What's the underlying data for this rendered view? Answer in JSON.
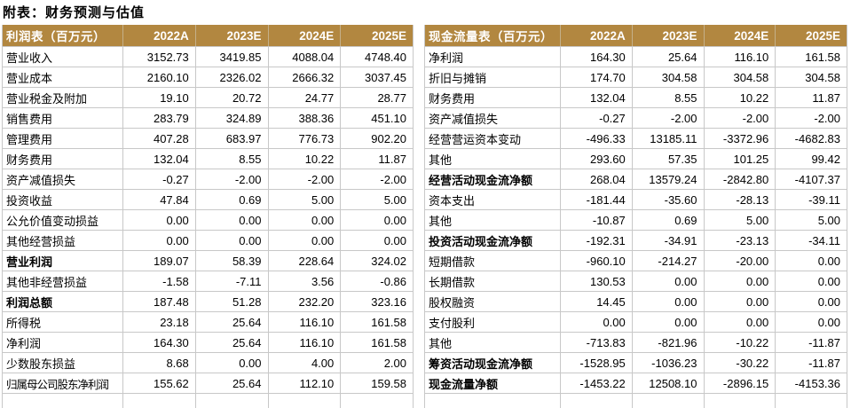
{
  "title": "附表：财务预测与估值",
  "colors": {
    "header_bg": "#B28740",
    "header_text": "#FFFFFF",
    "grid": "#C8C8C8",
    "text": "#000000"
  },
  "income_table": {
    "header": {
      "label": "利润表（百万元）",
      "cols": [
        "2022A",
        "2023E",
        "2024E",
        "2025E"
      ]
    },
    "rows": [
      {
        "label": "营业收入",
        "bold": false,
        "values": [
          "3152.73",
          "3419.85",
          "4088.04",
          "4748.40"
        ]
      },
      {
        "label": "营业成本",
        "bold": false,
        "values": [
          "2160.10",
          "2326.02",
          "2666.32",
          "3037.45"
        ]
      },
      {
        "label": "营业税金及附加",
        "bold": false,
        "values": [
          "19.10",
          "20.72",
          "24.77",
          "28.77"
        ]
      },
      {
        "label": "销售费用",
        "bold": false,
        "values": [
          "283.79",
          "324.89",
          "388.36",
          "451.10"
        ]
      },
      {
        "label": "管理费用",
        "bold": false,
        "values": [
          "407.28",
          "683.97",
          "776.73",
          "902.20"
        ]
      },
      {
        "label": "财务费用",
        "bold": false,
        "values": [
          "132.04",
          "8.55",
          "10.22",
          "11.87"
        ]
      },
      {
        "label": "资产减值损失",
        "bold": false,
        "values": [
          "-0.27",
          "-2.00",
          "-2.00",
          "-2.00"
        ]
      },
      {
        "label": "投资收益",
        "bold": false,
        "values": [
          "47.84",
          "0.69",
          "5.00",
          "5.00"
        ]
      },
      {
        "label": "公允价值变动损益",
        "bold": false,
        "values": [
          "0.00",
          "0.00",
          "0.00",
          "0.00"
        ]
      },
      {
        "label": "其他经营损益",
        "bold": false,
        "values": [
          "0.00",
          "0.00",
          "0.00",
          "0.00"
        ]
      },
      {
        "label": "营业利润",
        "bold": true,
        "values": [
          "189.07",
          "58.39",
          "228.64",
          "324.02"
        ]
      },
      {
        "label": "其他非经营损益",
        "bold": false,
        "values": [
          "-1.58",
          "-7.11",
          "3.56",
          "-0.86"
        ]
      },
      {
        "label": "利润总额",
        "bold": true,
        "values": [
          "187.48",
          "51.28",
          "232.20",
          "323.16"
        ]
      },
      {
        "label": "所得税",
        "bold": false,
        "values": [
          "23.18",
          "25.64",
          "116.10",
          "161.58"
        ]
      },
      {
        "label": "净利润",
        "bold": false,
        "values": [
          "164.30",
          "25.64",
          "116.10",
          "161.58"
        ]
      },
      {
        "label": "少数股东损益",
        "bold": false,
        "values": [
          "8.68",
          "0.00",
          "4.00",
          "2.00"
        ]
      },
      {
        "label": "归属母公司股东净利润",
        "bold": false,
        "tight": true,
        "values": [
          "155.62",
          "25.64",
          "112.10",
          "159.58"
        ]
      }
    ]
  },
  "cashflow_table": {
    "header": {
      "label": "现金流量表（百万元）",
      "cols": [
        "2022A",
        "2023E",
        "2024E",
        "2025E"
      ]
    },
    "rows": [
      {
        "label": "净利润",
        "bold": false,
        "values": [
          "164.30",
          "25.64",
          "116.10",
          "161.58"
        ]
      },
      {
        "label": "折旧与摊销",
        "bold": false,
        "values": [
          "174.70",
          "304.58",
          "304.58",
          "304.58"
        ]
      },
      {
        "label": "财务费用",
        "bold": false,
        "values": [
          "132.04",
          "8.55",
          "10.22",
          "11.87"
        ]
      },
      {
        "label": "资产减值损失",
        "bold": false,
        "values": [
          "-0.27",
          "-2.00",
          "-2.00",
          "-2.00"
        ]
      },
      {
        "label": "经营营运资本变动",
        "bold": false,
        "values": [
          "-496.33",
          "13185.11",
          "-3372.96",
          "-4682.83"
        ]
      },
      {
        "label": "其他",
        "bold": false,
        "values": [
          "293.60",
          "57.35",
          "101.25",
          "99.42"
        ]
      },
      {
        "label": "经营活动现金流净额",
        "bold": true,
        "values": [
          "268.04",
          "13579.24",
          "-2842.80",
          "-4107.37"
        ]
      },
      {
        "label": "资本支出",
        "bold": false,
        "values": [
          "-181.44",
          "-35.60",
          "-28.13",
          "-39.11"
        ]
      },
      {
        "label": "其他",
        "bold": false,
        "values": [
          "-10.87",
          "0.69",
          "5.00",
          "5.00"
        ]
      },
      {
        "label": "投资活动现金流净额",
        "bold": true,
        "values": [
          "-192.31",
          "-34.91",
          "-23.13",
          "-34.11"
        ]
      },
      {
        "label": "短期借款",
        "bold": false,
        "values": [
          "-960.10",
          "-214.27",
          "-20.00",
          "0.00"
        ]
      },
      {
        "label": "长期借款",
        "bold": false,
        "values": [
          "130.53",
          "0.00",
          "0.00",
          "0.00"
        ]
      },
      {
        "label": "股权融资",
        "bold": false,
        "values": [
          "14.45",
          "0.00",
          "0.00",
          "0.00"
        ]
      },
      {
        "label": "支付股利",
        "bold": false,
        "values": [
          "0.00",
          "0.00",
          "0.00",
          "0.00"
        ]
      },
      {
        "label": "其他",
        "bold": false,
        "values": [
          "-713.83",
          "-821.96",
          "-10.22",
          "-11.87"
        ]
      },
      {
        "label": "筹资活动现金流净额",
        "bold": true,
        "values": [
          "-1528.95",
          "-1036.23",
          "-30.22",
          "-11.87"
        ]
      },
      {
        "label": "现金流量净额",
        "bold": true,
        "values": [
          "-1453.22",
          "12508.10",
          "-2896.15",
          "-4153.36"
        ]
      }
    ]
  }
}
